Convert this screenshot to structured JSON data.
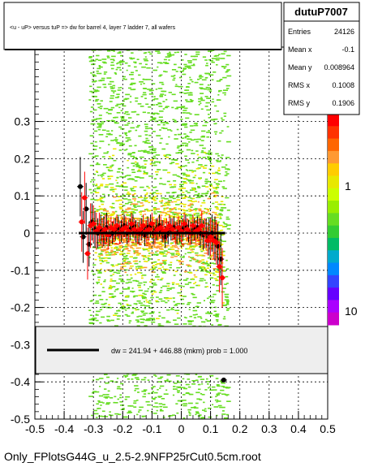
{
  "title_box": {
    "text": "<u - uP>       versus  tuP =>  dw for barrel 4, layer 7 ladder 7, all wafers"
  },
  "stats": {
    "name": "dutuP7007",
    "rows": [
      {
        "label": "Entries",
        "value": "24126"
      },
      {
        "label": "Mean x",
        "value": "-0.1"
      },
      {
        "label": "Mean y",
        "value": "0.008964"
      },
      {
        "label": "RMS x",
        "value": "0.1008"
      },
      {
        "label": "RMS y",
        "value": "0.1906"
      }
    ]
  },
  "fit_legend": {
    "text": "dw =  241.94 + 446.88 (mkm) prob = 1.000"
  },
  "footer": {
    "text": "Only_FPlotsG44G_u_2.5-2.9NFP25rCut0.5cm.root"
  },
  "colors": {
    "profile_black": "#000000",
    "profile_red": "#ff0000",
    "scatter_green": "#66dd22",
    "core_orange": "#ff9933",
    "core_yellow": "#e8e800"
  },
  "chart_data": {
    "type": "scatter",
    "title": "<u - uP>       versus  tuP =>  dw for barrel 4, layer 7 ladder 7, all wafers",
    "xlim": [
      -0.5,
      0.5
    ],
    "ylim": [
      -0.5,
      0.5
    ],
    "x_ticks": [
      "-0.5",
      "-0.4",
      "-0.3",
      "-0.2",
      "-0.1",
      "0",
      "0.1",
      "0.2",
      "0.3",
      "0.4",
      "0.5"
    ],
    "y_ticks": [
      "-0.5",
      "-0.4",
      "-0.3",
      "-0.2",
      "-0.1",
      "0",
      "0.1",
      "0.2",
      "0.3"
    ],
    "y_tick_values": [
      -0.5,
      -0.4,
      -0.3,
      -0.2,
      -0.1,
      0,
      0.1,
      0.2,
      0.3
    ],
    "colorbar_labels": [
      "10",
      "1",
      "10"
    ],
    "grid": true,
    "series": [
      {
        "name": "black profile",
        "color": "#000000",
        "x": [
          -0.345,
          -0.335,
          -0.325,
          -0.315,
          -0.305,
          -0.295,
          -0.285,
          -0.275,
          -0.265,
          -0.255,
          -0.245,
          -0.235,
          -0.225,
          -0.215,
          -0.205,
          -0.195,
          -0.185,
          -0.175,
          -0.165,
          -0.155,
          -0.145,
          -0.135,
          -0.125,
          -0.115,
          -0.105,
          -0.095,
          -0.085,
          -0.075,
          -0.065,
          -0.055,
          -0.045,
          -0.035,
          -0.025,
          -0.015,
          -0.005,
          0.005,
          0.015,
          0.025,
          0.035,
          0.045,
          0.055,
          0.065,
          0.075,
          0.085,
          0.095,
          0.105,
          0.115,
          0.125,
          0.135,
          0.145
        ],
        "y": [
          0.125,
          -0.01,
          0.065,
          -0.03,
          0.03,
          0.01,
          0.0,
          0.01,
          0.005,
          0.015,
          -0.005,
          0.0,
          0.01,
          0.015,
          0.005,
          0.02,
          0.0,
          0.01,
          0.02,
          0.005,
          0.0,
          0.01,
          -0.005,
          0.015,
          0.02,
          0.0,
          0.01,
          0.02,
          0.005,
          -0.01,
          0.0,
          0.01,
          0.015,
          0.0,
          0.005,
          0.01,
          0.02,
          0.005,
          0.0,
          0.01,
          0.015,
          0.0,
          -0.005,
          0.0,
          -0.01,
          0.0,
          -0.015,
          -0.035,
          -0.07,
          -0.395
        ],
        "yerr": [
          0.08,
          0.07,
          0.07,
          0.06,
          0.05,
          0.05,
          0.04,
          0.04,
          0.04,
          0.04,
          0.03,
          0.03,
          0.03,
          0.03,
          0.03,
          0.03,
          0.03,
          0.03,
          0.03,
          0.03,
          0.03,
          0.03,
          0.03,
          0.03,
          0.03,
          0.03,
          0.03,
          0.03,
          0.03,
          0.03,
          0.03,
          0.03,
          0.03,
          0.03,
          0.03,
          0.03,
          0.03,
          0.03,
          0.03,
          0.03,
          0.03,
          0.04,
          0.04,
          0.04,
          0.05,
          0.05,
          0.06,
          0.06,
          0.07,
          0.0
        ]
      },
      {
        "name": "red profile",
        "color": "#ff0000",
        "x": [
          -0.34,
          -0.33,
          -0.32,
          -0.31,
          -0.3,
          -0.29,
          -0.28,
          -0.27,
          -0.26,
          -0.25,
          -0.24,
          -0.23,
          -0.22,
          -0.21,
          -0.2,
          -0.19,
          -0.18,
          -0.17,
          -0.16,
          -0.15,
          -0.14,
          -0.13,
          -0.12,
          -0.11,
          -0.1,
          -0.09,
          -0.08,
          -0.07,
          -0.06,
          -0.05,
          -0.04,
          -0.03,
          -0.02,
          -0.01,
          0.0,
          0.01,
          0.02,
          0.03,
          0.04,
          0.05,
          0.06,
          0.07,
          0.08,
          0.09,
          0.1,
          0.11,
          0.12,
          0.13,
          0.14
        ],
        "y": [
          0.03,
          0.095,
          -0.055,
          0.02,
          0.025,
          0.005,
          0.015,
          0.0,
          0.01,
          -0.005,
          0.015,
          0.01,
          0.02,
          0.0,
          0.01,
          0.015,
          0.005,
          0.025,
          0.01,
          0.0,
          0.01,
          0.02,
          0.005,
          0.01,
          0.025,
          0.0,
          0.01,
          0.015,
          0.005,
          0.01,
          0.02,
          0.01,
          0.0,
          0.015,
          0.005,
          0.025,
          0.01,
          0.0,
          0.02,
          0.005,
          0.01,
          0.02,
          0.0,
          -0.02,
          -0.01,
          -0.02,
          -0.025,
          -0.09,
          -0.12
        ],
        "yerr": [
          0.08,
          0.07,
          0.07,
          0.06,
          0.05,
          0.05,
          0.04,
          0.04,
          0.04,
          0.04,
          0.03,
          0.03,
          0.03,
          0.03,
          0.03,
          0.03,
          0.03,
          0.03,
          0.03,
          0.03,
          0.03,
          0.03,
          0.03,
          0.03,
          0.03,
          0.03,
          0.03,
          0.03,
          0.03,
          0.03,
          0.03,
          0.03,
          0.03,
          0.03,
          0.03,
          0.03,
          0.03,
          0.03,
          0.03,
          0.03,
          0.03,
          0.04,
          0.04,
          0.04,
          0.05,
          0.05,
          0.06,
          0.07,
          0.08
        ]
      }
    ],
    "fit": {
      "x": [
        -0.35,
        0.15
      ],
      "y": [
        0.0,
        0.0
      ]
    }
  }
}
